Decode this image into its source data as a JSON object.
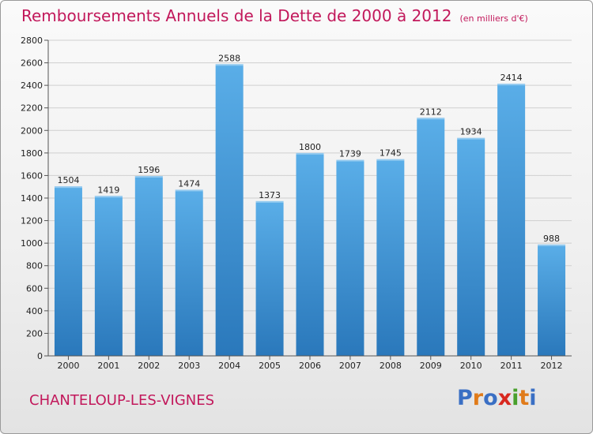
{
  "header": {
    "title": "Remboursements Annuels de la Dette de 2000 à 2012",
    "unit": "(en milliers d'€)"
  },
  "footer": {
    "commune": "CHANTELOUP-LES-VIGNES",
    "logo": "Proxiti"
  },
  "colors": {
    "bar_light": "#5aaee8",
    "bar_dark": "#2a78bb",
    "title": "#c2185b",
    "grid": "#cfcfcf",
    "logo_letters": [
      "#3a6fc4",
      "#e07b1a",
      "#3a6fc4",
      "#d8281f",
      "#49a02c",
      "#e07b1a",
      "#3a6fc4"
    ]
  },
  "chart_data": {
    "type": "bar",
    "title": "Remboursements Annuels de la Dette de 2000 à 2012",
    "categories": [
      "2000",
      "2001",
      "2002",
      "2003",
      "2004",
      "2005",
      "2006",
      "2007",
      "2008",
      "2009",
      "2010",
      "2011",
      "2012"
    ],
    "values": [
      1504,
      1419,
      1596,
      1474,
      2588,
      1373,
      1800,
      1739,
      1745,
      2112,
      1934,
      2414,
      988
    ],
    "ylim": [
      0,
      2800
    ],
    "yticks": [
      0,
      200,
      400,
      600,
      800,
      1000,
      1200,
      1400,
      1600,
      1800,
      2000,
      2200,
      2400,
      2600,
      2800
    ],
    "grid": true,
    "xlabel": "",
    "ylabel": ""
  }
}
